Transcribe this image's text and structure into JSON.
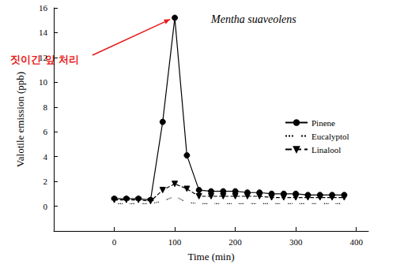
{
  "chart_data": {
    "type": "line",
    "title": "Mentha suaveolens",
    "x_label": "Time (min)",
    "y_label": "Valotile emission (ppb)",
    "x": [
      0,
      20,
      40,
      60,
      80,
      100,
      120,
      140,
      160,
      180,
      200,
      220,
      240,
      260,
      280,
      300,
      320,
      340,
      360,
      380
    ],
    "series": [
      {
        "name": "Pinene",
        "color": "#000000",
        "marker": "circle",
        "line_style": "solid",
        "values": [
          0.6,
          0.6,
          0.6,
          0.5,
          6.8,
          15.2,
          4.1,
          1.3,
          1.2,
          1.2,
          1.2,
          1.1,
          1.1,
          1.0,
          1.0,
          1.0,
          0.9,
          0.9,
          0.9,
          0.9
        ]
      },
      {
        "name": "Eucalyptol",
        "color": "#000000",
        "marker": "circle_open",
        "line_style": "dotted",
        "values": [
          0.2,
          0.2,
          0.2,
          0.2,
          0.4,
          0.8,
          0.3,
          0.2,
          0.2,
          0.2,
          0.2,
          0.2,
          0.2,
          0.2,
          0.2,
          0.2,
          0.2,
          0.2,
          0.2,
          0.2
        ]
      },
      {
        "name": "Linalool",
        "color": "#000000",
        "marker": "triangle_down",
        "line_style": "dashed",
        "values": [
          0.5,
          0.5,
          0.5,
          0.4,
          1.3,
          1.8,
          1.4,
          0.8,
          0.8,
          0.8,
          0.8,
          0.8,
          0.8,
          0.7,
          0.7,
          0.7,
          0.7,
          0.7,
          0.7,
          0.7
        ]
      }
    ],
    "xlim": [
      -100,
      420
    ],
    "xticks": [
      0,
      100,
      200,
      300,
      400
    ],
    "ylim": [
      -2,
      16
    ],
    "yticks": [
      0,
      2,
      4,
      6,
      8,
      10,
      12,
      14,
      16
    ],
    "grid": false,
    "legend": "upper right",
    "annotations": [
      {
        "text": "짓이긴 잎 처리",
        "x": 100,
        "y": 15.2,
        "color": "#e8191b"
      }
    ]
  }
}
